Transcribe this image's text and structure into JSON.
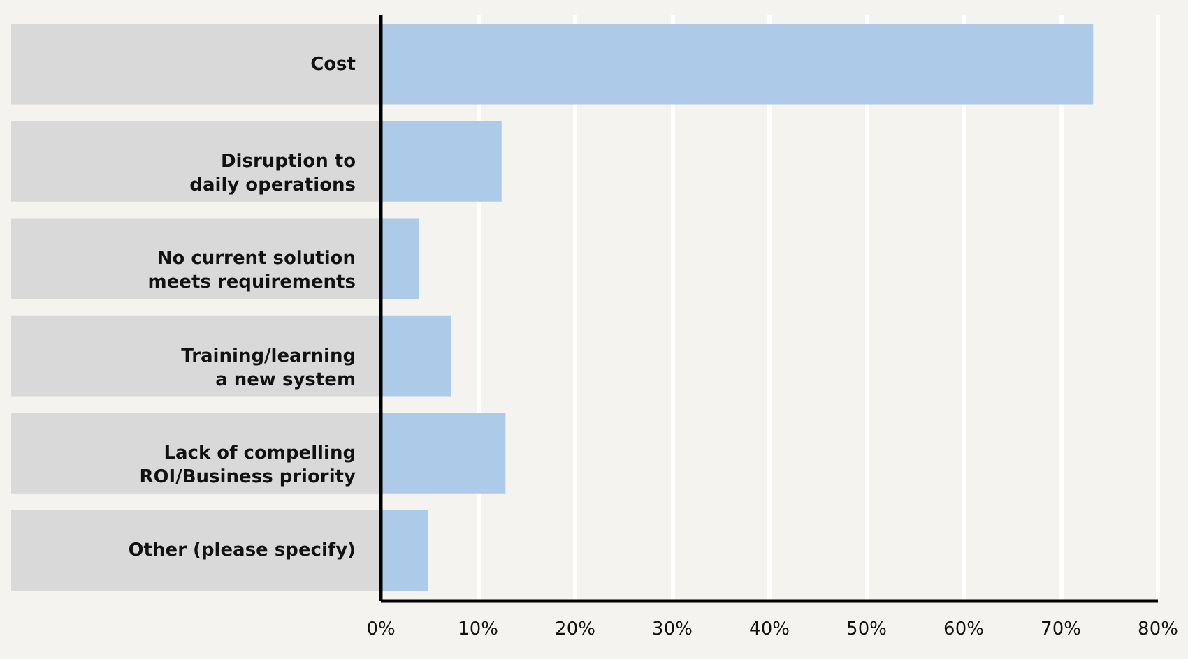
{
  "chart_data": {
    "type": "bar",
    "orientation": "horizontal",
    "categories": [
      "Cost",
      "Disruption to daily operations",
      "No current solution meets requirements",
      "Training/learning a new system",
      "Lack of compelling ROI/Business priority",
      "Other (please specify)"
    ],
    "values": [
      73.4,
      12.5,
      4.0,
      7.3,
      12.9,
      4.9
    ],
    "color": "#aecae9",
    "xlim": [
      0,
      80
    ],
    "xticks": [
      {
        "value": 0,
        "label": "0%"
      },
      {
        "value": 10,
        "label": "10%"
      },
      {
        "value": 20,
        "label": "20%"
      },
      {
        "value": 30,
        "label": "30%"
      },
      {
        "value": 40,
        "label": "40%"
      },
      {
        "value": 50,
        "label": "50%"
      },
      {
        "value": 60,
        "label": "60%"
      },
      {
        "value": 70,
        "label": "70%"
      },
      {
        "value": 80,
        "label": "80%"
      }
    ],
    "grid": "x"
  }
}
